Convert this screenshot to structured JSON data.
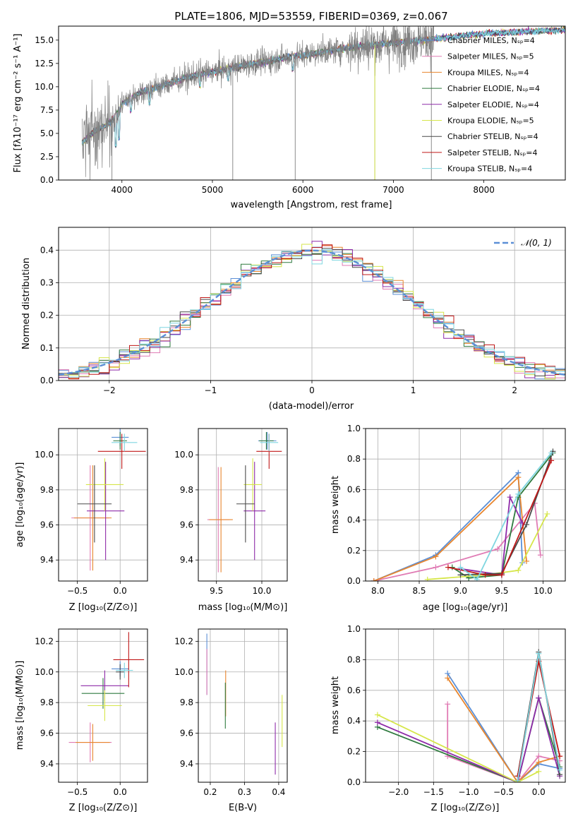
{
  "colors": [
    "#5b8fd6",
    "#e07bb4",
    "#e8862e",
    "#2f7a3f",
    "#8e2aa8",
    "#d6e64a",
    "#4a4a4a",
    "#c01818",
    "#7fd6e0"
  ],
  "spectrum": {
    "title": "PLATE=1806, MJD=53559, FIBERID=0369, z=0.067",
    "xlabel": "wavelength [Angstrom, rest frame]",
    "ylabel": "Flux [fλ10⁻¹⁷ erg cm⁻² s⁻¹ A⁻¹]",
    "legend": [
      "Chabrier MILES, Nₛₚ=4",
      "Salpeter MILES, Nₛₚ=5",
      "Kroupa MILES, Nₛₚ=4",
      "Chabrier ELODIE, Nₛₚ=4",
      "Salpeter ELODIE, Nₛₚ=4",
      "Kroupa ELODIE, Nₛₚ=5",
      "Chabrier STELIB, Nₛₚ=4",
      "Salpeter STELIB, Nₛₚ=4",
      "Kroupa STELIB, Nₛₚ=4"
    ]
  },
  "histogram": {
    "xlabel": "(data-model)/error",
    "ylabel": "Normed distribution",
    "legend": "𝒩(0, 1)"
  },
  "panels": {
    "p1": {
      "xlabel": "Z [log₁₀(Z/Z⊙)]",
      "ylabel": "age  [log₁₀(age/yr)]"
    },
    "p2": {
      "xlabel": "mass [log₁₀(M/M⊙)]"
    },
    "p3": {
      "xlabel": "age  [log₁₀(age/yr)]",
      "ylabel": "mass weight"
    },
    "p4": {
      "xlabel": "Z [log₁₀(Z/Z⊙)]",
      "ylabel": "mass [log₁₀(M/M⊙)]"
    },
    "p5": {
      "xlabel": "E(B-V)"
    },
    "p6": {
      "xlabel": "Z [log₁₀(Z/Z⊙)]",
      "ylabel": "mass weight"
    }
  },
  "chart_data": [
    {
      "type": "line",
      "id": "spectrum",
      "xlim": [
        3300,
        8900
      ],
      "ylim": [
        0,
        16.5
      ],
      "xticks": [
        4000,
        5000,
        6000,
        7000,
        8000
      ],
      "yticks": [
        0.0,
        2.5,
        5.0,
        7.5,
        10.0,
        12.5,
        15.0
      ],
      "legend_position": "right",
      "continuum": [
        [
          3560,
          4.0
        ],
        [
          3700,
          5.2
        ],
        [
          3850,
          6.0
        ],
        [
          3950,
          7.0
        ],
        [
          4000,
          8.2
        ],
        [
          4200,
          9.4
        ],
        [
          4400,
          10.0
        ],
        [
          4600,
          10.6
        ],
        [
          4800,
          11.2
        ],
        [
          5000,
          11.6
        ],
        [
          5200,
          12.0
        ],
        [
          5400,
          12.4
        ],
        [
          5600,
          12.7
        ],
        [
          5800,
          13.1
        ],
        [
          6000,
          13.4
        ],
        [
          6200,
          13.7
        ],
        [
          6400,
          14.0
        ],
        [
          6600,
          14.3
        ],
        [
          6800,
          14.5
        ],
        [
          7000,
          14.7
        ],
        [
          7200,
          14.9
        ],
        [
          7400,
          15.1
        ],
        [
          7600,
          15.3
        ],
        [
          7800,
          15.5
        ],
        [
          8000,
          15.7
        ],
        [
          8200,
          15.8
        ],
        [
          8400,
          15.9
        ],
        [
          8900,
          16.1
        ]
      ]
    },
    {
      "type": "bar",
      "id": "residual-histogram",
      "xlim": [
        -2.5,
        2.5
      ],
      "ylim": [
        0,
        0.47
      ],
      "xticks": [
        -2,
        -1,
        0,
        1,
        2
      ],
      "yticks": [
        0.0,
        0.1,
        0.2,
        0.3,
        0.4
      ],
      "bin_width": 0.1,
      "gaussian": {
        "mean": 0,
        "sigma": 1,
        "name": "𝒩(0, 1)"
      },
      "legend_position": "top-right"
    },
    {
      "type": "scatter",
      "id": "Z-vs-age",
      "xlim": [
        -0.72,
        0.32
      ],
      "ylim": [
        9.28,
        10.15
      ],
      "xticks": [
        -0.5,
        0.0
      ],
      "yticks": [
        9.4,
        9.6,
        9.8,
        10.0
      ],
      "points": [
        {
          "x": 0.0,
          "y": 10.1,
          "xerr": 0.1,
          "yerr": 0.05
        },
        {
          "x": -0.35,
          "y": 9.64,
          "xerr": 0.22,
          "yerr": 0.3
        },
        {
          "x": -0.32,
          "y": 9.64,
          "xerr": 0.22,
          "yerr": 0.3
        },
        {
          "x": 0.0,
          "y": 10.08,
          "xerr": 0.08,
          "yerr": 0.05
        },
        {
          "x": -0.17,
          "y": 9.68,
          "xerr": 0.22,
          "yerr": 0.28
        },
        {
          "x": -0.18,
          "y": 9.83,
          "xerr": 0.22,
          "yerr": 0.15
        },
        {
          "x": -0.3,
          "y": 9.72,
          "xerr": 0.2,
          "yerr": 0.22
        },
        {
          "x": 0.02,
          "y": 10.02,
          "xerr": 0.28,
          "yerr": 0.1
        },
        {
          "x": 0.05,
          "y": 10.07,
          "xerr": 0.15,
          "yerr": 0.05
        }
      ]
    },
    {
      "type": "scatter",
      "id": "mass-vs-age",
      "xlim": [
        9.3,
        10.28
      ],
      "ylim": [
        9.28,
        10.15
      ],
      "xticks": [
        9.5,
        10.0
      ],
      "yticks": [
        9.4,
        9.6,
        9.8,
        10.0
      ],
      "points": [
        {
          "x": 10.06,
          "y": 10.08,
          "xerr": 0.1,
          "yerr": 0.05
        },
        {
          "x": 9.52,
          "y": 9.63,
          "xerr": 0.12,
          "yerr": 0.3
        },
        {
          "x": 9.55,
          "y": 9.63,
          "xerr": 0.13,
          "yerr": 0.3
        },
        {
          "x": 10.05,
          "y": 10.08,
          "xerr": 0.08,
          "yerr": 0.05
        },
        {
          "x": 9.92,
          "y": 9.68,
          "xerr": 0.12,
          "yerr": 0.28
        },
        {
          "x": 9.9,
          "y": 9.83,
          "xerr": 0.1,
          "yerr": 0.15
        },
        {
          "x": 9.82,
          "y": 9.72,
          "xerr": 0.1,
          "yerr": 0.22
        },
        {
          "x": 10.08,
          "y": 10.02,
          "xerr": 0.14,
          "yerr": 0.1
        },
        {
          "x": 10.08,
          "y": 10.07,
          "xerr": 0.1,
          "yerr": 0.05
        }
      ]
    },
    {
      "type": "line",
      "id": "weight-vs-age",
      "xlim": [
        7.85,
        10.27
      ],
      "ylim": [
        0,
        1.0
      ],
      "xticks": [
        8.0,
        8.5,
        9.0,
        9.5,
        10.0
      ],
      "yticks": [
        0.0,
        0.2,
        0.4,
        0.6,
        0.8,
        1.0
      ],
      "series": [
        {
          "points": [
            [
              7.95,
              0.0
            ],
            [
              8.7,
              0.17
            ],
            [
              9.7,
              0.71
            ],
            [
              9.75,
              0.12
            ]
          ]
        },
        {
          "points": [
            [
              7.95,
              0.0
            ],
            [
              8.7,
              0.09
            ],
            [
              9.45,
              0.21
            ],
            [
              9.9,
              0.51
            ],
            [
              9.97,
              0.17
            ]
          ]
        },
        {
          "points": [
            [
              7.95,
              0.0
            ],
            [
              8.7,
              0.16
            ],
            [
              9.7,
              0.68
            ],
            [
              9.8,
              0.13
            ]
          ]
        },
        {
          "points": [
            [
              8.9,
              0.09
            ],
            [
              9.1,
              0.02
            ],
            [
              9.5,
              0.04
            ],
            [
              9.7,
              0.55
            ],
            [
              10.12,
              0.84
            ]
          ]
        },
        {
          "points": [
            [
              9.0,
              0.08
            ],
            [
              9.5,
              0.04
            ],
            [
              9.6,
              0.55
            ],
            [
              9.75,
              0.38
            ]
          ]
        },
        {
          "points": [
            [
              8.6,
              0.01
            ],
            [
              9.3,
              0.04
            ],
            [
              9.7,
              0.07
            ],
            [
              10.05,
              0.44
            ]
          ]
        },
        {
          "points": [
            [
              9.0,
              0.04
            ],
            [
              9.5,
              0.05
            ],
            [
              9.8,
              0.37
            ],
            [
              10.12,
              0.85
            ]
          ]
        },
        {
          "points": [
            [
              8.85,
              0.09
            ],
            [
              9.3,
              0.04
            ],
            [
              9.5,
              0.04
            ],
            [
              10.1,
              0.79
            ]
          ]
        },
        {
          "points": [
            [
              9.0,
              0.09
            ],
            [
              9.2,
              0.01
            ],
            [
              9.7,
              0.57
            ],
            [
              10.1,
              0.84
            ]
          ]
        }
      ]
    },
    {
      "type": "scatter",
      "id": "Z-vs-mass",
      "xlim": [
        -0.72,
        0.32
      ],
      "ylim": [
        9.28,
        10.28
      ],
      "xticks": [
        -0.5,
        0.0
      ],
      "yticks": [
        9.4,
        9.6,
        9.8,
        10.0,
        10.2
      ],
      "points": [
        {
          "x": 0.0,
          "y": 10.02,
          "xerr": 0.1,
          "yerr": 0.05
        },
        {
          "x": -0.35,
          "y": 9.54,
          "xerr": 0.25,
          "yerr": 0.13
        },
        {
          "x": -0.32,
          "y": 9.54,
          "xerr": 0.2,
          "yerr": 0.12
        },
        {
          "x": -0.2,
          "y": 9.86,
          "xerr": 0.25,
          "yerr": 0.1
        },
        {
          "x": -0.18,
          "y": 9.91,
          "xerr": 0.28,
          "yerr": 0.1
        },
        {
          "x": -0.18,
          "y": 9.78,
          "xerr": 0.2,
          "yerr": 0.1
        },
        {
          "x": 0.0,
          "y": 10.0,
          "xerr": 0.05,
          "yerr": 0.05
        },
        {
          "x": 0.1,
          "y": 10.08,
          "xerr": 0.18,
          "yerr": 0.18
        },
        {
          "x": 0.05,
          "y": 10.01,
          "xerr": 0.1,
          "yerr": 0.05
        }
      ]
    },
    {
      "type": "scatter",
      "id": "ebv-vs-mass",
      "xlim": [
        0.165,
        0.425
      ],
      "ylim": [
        9.28,
        10.28
      ],
      "xticks": [
        0.2,
        0.3,
        0.4
      ],
      "yticks": [
        9.4,
        9.6,
        9.8,
        10.0,
        10.2
      ],
      "points": [
        {
          "x": 0.19,
          "y": 10.05,
          "xerr": 0,
          "yerr": 0.2
        },
        {
          "x": 0.19,
          "y": 10.0,
          "xerr": 0,
          "yerr": 0.15
        },
        {
          "x": 0.245,
          "y": 9.86,
          "xerr": 0,
          "yerr": 0.15
        },
        {
          "x": 0.244,
          "y": 9.78,
          "xerr": 0,
          "yerr": 0.15
        },
        {
          "x": 0.39,
          "y": 9.5,
          "xerr": 0,
          "yerr": 0.17
        },
        {
          "x": 0.41,
          "y": 9.68,
          "xerr": 0,
          "yerr": 0.17
        }
      ]
    },
    {
      "type": "line",
      "id": "weight-vs-Z",
      "xlim": [
        -2.47,
        0.38
      ],
      "ylim": [
        0,
        1.0
      ],
      "xticks": [
        -2.0,
        -1.5,
        -1.0,
        -0.5,
        0.0
      ],
      "yticks": [
        0.0,
        0.2,
        0.4,
        0.6,
        0.8,
        1.0
      ],
      "series": [
        {
          "points": [
            [
              -1.3,
              0.71
            ],
            [
              -0.3,
              0.0
            ],
            [
              0.0,
              0.12
            ],
            [
              0.3,
              0.09
            ]
          ]
        },
        {
          "points": [
            [
              -1.3,
              0.51
            ],
            [
              -1.3,
              0.17
            ],
            [
              -0.3,
              0.0
            ],
            [
              0.0,
              0.17
            ],
            [
              0.3,
              0.14
            ]
          ]
        },
        {
          "points": [
            [
              -1.3,
              0.68
            ],
            [
              -0.3,
              0.0
            ],
            [
              0.0,
              0.13
            ],
            [
              0.3,
              0.17
            ]
          ]
        },
        {
          "points": [
            [
              -2.3,
              0.36
            ],
            [
              -0.3,
              0.0
            ],
            [
              0.0,
              0.55
            ],
            [
              0.3,
              0.1
            ]
          ]
        },
        {
          "points": [
            [
              -2.3,
              0.39
            ],
            [
              -0.3,
              0.0
            ],
            [
              0.0,
              0.55
            ],
            [
              0.3,
              0.04
            ]
          ]
        },
        {
          "points": [
            [
              -2.3,
              0.44
            ],
            [
              -0.3,
              0.0
            ],
            [
              0.0,
              0.07
            ]
          ]
        },
        {
          "points": [
            [
              -0.3,
              0.04
            ],
            [
              0.0,
              0.85
            ],
            [
              0.3,
              0.05
            ]
          ]
        },
        {
          "points": [
            [
              -0.3,
              0.04
            ],
            [
              0.0,
              0.79
            ],
            [
              0.3,
              0.17
            ]
          ]
        },
        {
          "points": [
            [
              -0.3,
              0.01
            ],
            [
              0.0,
              0.84
            ],
            [
              0.3,
              0.08
            ]
          ]
        }
      ]
    }
  ]
}
